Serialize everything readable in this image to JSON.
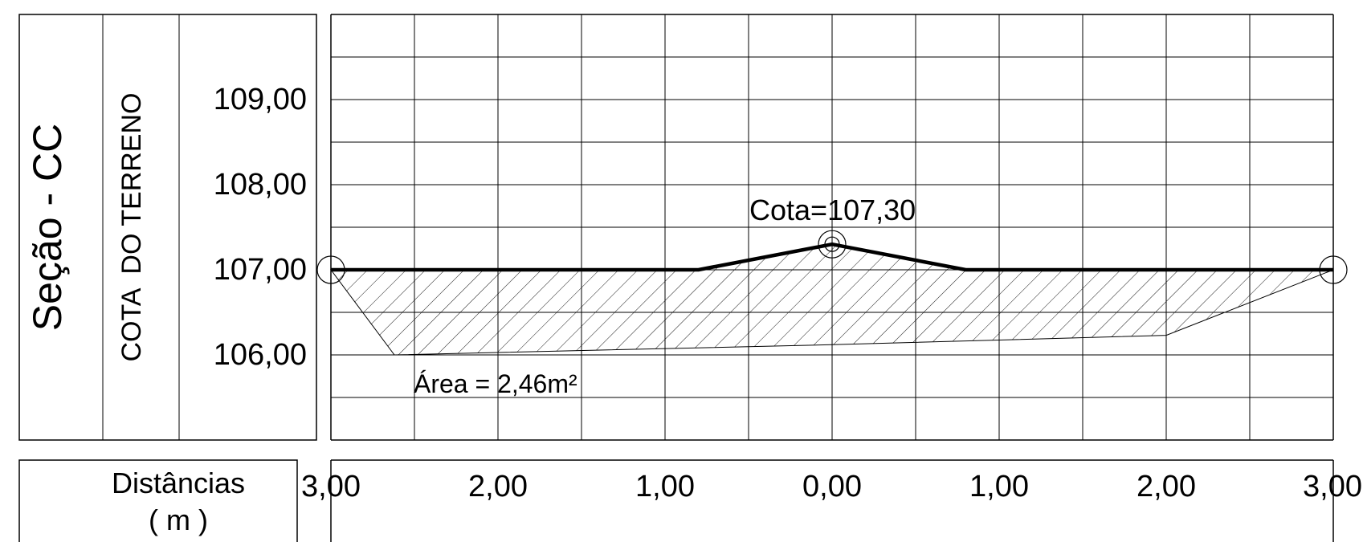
{
  "section_title": "Seção - CC",
  "row_header": "COTA  DO TERRENO",
  "elevation_labels": [
    "109,00",
    "108,00",
    "107,00",
    "106,00"
  ],
  "distance_header": {
    "line1": "Distâncias",
    "line2": "( m )"
  },
  "distance_labels": [
    "3,00",
    "2,00",
    "1,00",
    "0,00",
    "1,00",
    "2,00",
    "3,00"
  ],
  "point_label": "Cota=107,30",
  "area_label": "Área = 2,46m²",
  "chart_data": {
    "type": "cross-section",
    "x_unit": "m",
    "y_unit": "m",
    "xlim": [
      -3.0,
      3.0
    ],
    "ylim": [
      105,
      110
    ],
    "grid": true,
    "terrain_profile": [
      {
        "x": -3.0,
        "y": 107.0
      },
      {
        "x": -0.8,
        "y": 107.0
      },
      {
        "x": 0.0,
        "y": 107.3
      },
      {
        "x": 0.8,
        "y": 107.0
      },
      {
        "x": 3.0,
        "y": 107.0
      }
    ],
    "excavation_bottom": [
      {
        "x": -3.0,
        "y": 107.0
      },
      {
        "x": -2.62,
        "y": 106.0
      },
      {
        "x": 0.0,
        "y": 106.12
      },
      {
        "x": 2.0,
        "y": 106.23
      },
      {
        "x": 3.0,
        "y": 107.0
      }
    ],
    "marked_points": [
      {
        "x": -3.0,
        "y": 107.0
      },
      {
        "x": 0.0,
        "y": 107.3
      },
      {
        "x": 3.0,
        "y": 107.0
      }
    ],
    "area_m2": 2.46
  }
}
